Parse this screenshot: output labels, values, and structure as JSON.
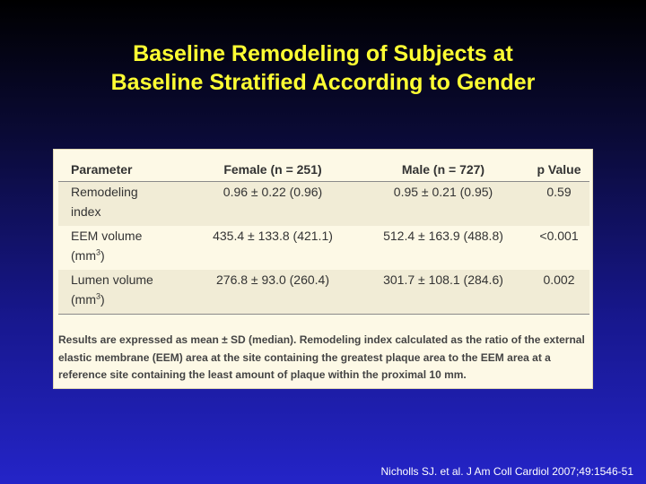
{
  "title": {
    "line1": "Baseline Remodeling of Subjects at",
    "line2": "Baseline Stratified According to Gender"
  },
  "table": {
    "headers": [
      "Parameter",
      "Female (n = 251)",
      "Male (n = 727)",
      "p Value"
    ],
    "rows": [
      {
        "param_line1": "Remodeling",
        "param_line2": "index",
        "param_sup": "",
        "female": "0.96 ± 0.22 (0.96)",
        "male": "0.95 ± 0.21 (0.95)",
        "p": "0.59"
      },
      {
        "param_line1": "EEM volume",
        "param_line2": "(mm",
        "param_sup": "3",
        "param_suffix": ")",
        "female": "435.4 ± 133.8 (421.1)",
        "male": "512.4 ± 163.9 (488.8)",
        "p": "<0.001"
      },
      {
        "param_line1": "Lumen volume",
        "param_line2": "(mm",
        "param_sup": "3",
        "param_suffix": ")",
        "female": "276.8 ± 93.0 (260.4)",
        "male": "301.7 ± 108.1 (284.6)",
        "p": "0.002"
      }
    ]
  },
  "footnote": "Results are expressed as mean ± SD (median). Remodeling index calculated as the ratio of the external elastic membrane (EEM) area at the site containing the greatest plaque area to the EEM area at a reference site containing the least amount of plaque within the proximal 10 mm.",
  "citation": "Nicholls SJ. et al. J Am Coll Cardiol 2007;49:1546-51",
  "colors": {
    "title": "#ffff33",
    "panel_background": "#fdf9e6",
    "row_shade": "#f1ecd6",
    "slide_gradient_top": "#000000",
    "slide_gradient_bottom": "#2424c8"
  }
}
